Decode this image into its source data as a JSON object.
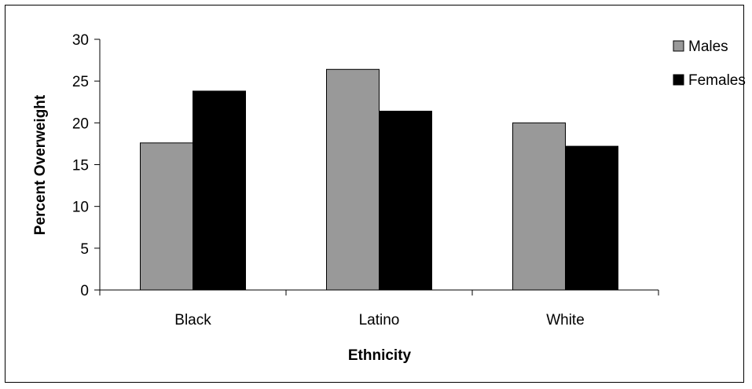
{
  "chart_data": {
    "type": "bar",
    "categories": [
      "Black",
      "Latino",
      "White"
    ],
    "series": [
      {
        "name": "Males",
        "color": "#999999",
        "values": [
          17.6,
          26.4,
          20.0
        ]
      },
      {
        "name": "Females",
        "color": "#000000",
        "values": [
          23.8,
          21.4,
          17.2
        ]
      }
    ],
    "xlabel": "Ethnicity",
    "ylabel": "Percent Overweight",
    "ylim": [
      0,
      30
    ],
    "yticks": [
      "0",
      "5",
      "10",
      "15",
      "20",
      "25",
      "30"
    ],
    "grid": false,
    "legend_position": "top-right"
  }
}
